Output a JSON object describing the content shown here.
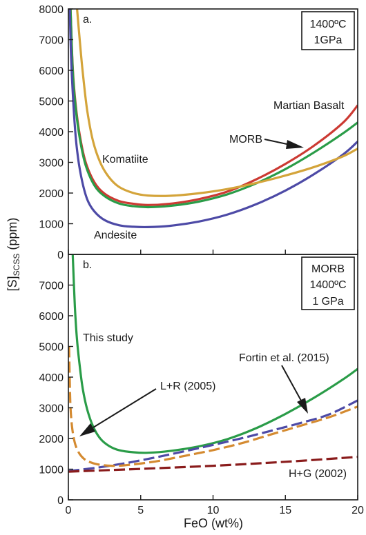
{
  "chart_data": [
    {
      "type": "line",
      "panel_label": "a.",
      "conditions": [
        "1400ºC",
        "1GPa"
      ],
      "xlabel": "",
      "ylabel": "[S]SCSS (ppm)",
      "xlim": [
        0,
        20
      ],
      "ylim": [
        0,
        8000
      ],
      "yticks": [
        "8000",
        "7000",
        "6000",
        "5000",
        "4000",
        "3000",
        "2000",
        "1000",
        "0"
      ],
      "series": [
        {
          "name": "Martian Basalt",
          "color": "#cc3a33",
          "dash": "solid",
          "points": [
            [
              0.15,
              8000
            ],
            [
              0.3,
              6100
            ],
            [
              0.5,
              4900
            ],
            [
              0.8,
              3850
            ],
            [
              1.2,
              3000
            ],
            [
              1.8,
              2350
            ],
            [
              2.5,
              1980
            ],
            [
              3.5,
              1740
            ],
            [
              4.5,
              1650
            ],
            [
              5.5,
              1610
            ],
            [
              7,
              1650
            ],
            [
              9,
              1800
            ],
            [
              11,
              2050
            ],
            [
              13,
              2450
            ],
            [
              15,
              2950
            ],
            [
              17,
              3550
            ],
            [
              19,
              4300
            ],
            [
              20,
              4860
            ]
          ]
        },
        {
          "name": "MORB",
          "color": "#2a9c48",
          "dash": "solid",
          "points": [
            [
              0.15,
              8000
            ],
            [
              0.3,
              6000
            ],
            [
              0.5,
              4800
            ],
            [
              0.8,
              3750
            ],
            [
              1.2,
              2900
            ],
            [
              1.8,
              2250
            ],
            [
              2.5,
              1900
            ],
            [
              3.5,
              1660
            ],
            [
              4.5,
              1570
            ],
            [
              5.5,
              1540
            ],
            [
              7,
              1580
            ],
            [
              9,
              1720
            ],
            [
              11,
              1960
            ],
            [
              13,
              2320
            ],
            [
              15,
              2780
            ],
            [
              17,
              3330
            ],
            [
              19,
              3950
            ],
            [
              20,
              4300
            ]
          ]
        },
        {
          "name": "Andesite",
          "color": "#4d4aa6",
          "dash": "solid",
          "points": [
            [
              0.1,
              8000
            ],
            [
              0.2,
              6300
            ],
            [
              0.4,
              4500
            ],
            [
              0.6,
              3400
            ],
            [
              0.9,
              2500
            ],
            [
              1.3,
              1800
            ],
            [
              1.8,
              1400
            ],
            [
              2.5,
              1120
            ],
            [
              3.5,
              950
            ],
            [
              4.5,
              900
            ],
            [
              5.5,
              890
            ],
            [
              7,
              930
            ],
            [
              9,
              1070
            ],
            [
              11,
              1300
            ],
            [
              13,
              1640
            ],
            [
              15,
              2080
            ],
            [
              17,
              2620
            ],
            [
              19,
              3260
            ],
            [
              20,
              3680
            ]
          ]
        },
        {
          "name": "Komatiite",
          "color": "#d4a43a",
          "dash": "solid",
          "points": [
            [
              0.6,
              8000
            ],
            [
              0.8,
              6900
            ],
            [
              1.0,
              5900
            ],
            [
              1.3,
              4700
            ],
            [
              1.7,
              3700
            ],
            [
              2.2,
              3000
            ],
            [
              2.8,
              2520
            ],
            [
              3.5,
              2200
            ],
            [
              4.5,
              2000
            ],
            [
              5.5,
              1920
            ],
            [
              7,
              1910
            ],
            [
              9,
              1990
            ],
            [
              11,
              2130
            ],
            [
              13,
              2330
            ],
            [
              15,
              2570
            ],
            [
              17,
              2850
            ],
            [
              19,
              3200
            ],
            [
              20,
              3450
            ]
          ]
        }
      ],
      "labels": [
        "Martian Basalt",
        "MORB",
        "Komatiite",
        "Andesite"
      ]
    },
    {
      "type": "line",
      "panel_label": "b.",
      "conditions": [
        "MORB",
        "1400ºC",
        "1 GPa"
      ],
      "xlabel": "FeO (wt%)",
      "ylabel": "",
      "xlim": [
        0,
        20
      ],
      "ylim": [
        0,
        8000
      ],
      "xticks": [
        "0",
        "5",
        "10",
        "15",
        "20"
      ],
      "yticks": [
        "7000",
        "6000",
        "5000",
        "4000",
        "3000",
        "2000",
        "1000",
        "0"
      ],
      "series": [
        {
          "name": "This study",
          "color": "#2a9c48",
          "dash": "solid",
          "points": [
            [
              0.3,
              8000
            ],
            [
              0.45,
              6300
            ],
            [
              0.6,
              5200
            ],
            [
              0.8,
              4300
            ],
            [
              1.0,
              3600
            ],
            [
              1.3,
              2950
            ],
            [
              1.7,
              2400
            ],
            [
              2.2,
              2000
            ],
            [
              2.8,
              1760
            ],
            [
              3.5,
              1620
            ],
            [
              4.5,
              1550
            ],
            [
              5.5,
              1535
            ],
            [
              7,
              1590
            ],
            [
              9,
              1740
            ],
            [
              11,
              1980
            ],
            [
              13,
              2340
            ],
            [
              15,
              2800
            ],
            [
              17,
              3330
            ],
            [
              19,
              3930
            ],
            [
              20,
              4270
            ]
          ]
        },
        {
          "name": "Fortin et al. (2015)",
          "color": "#4d4aa6",
          "dash": "dashed",
          "points": [
            [
              0,
              940
            ],
            [
              2,
              1050
            ],
            [
              4,
              1200
            ],
            [
              6,
              1380
            ],
            [
              8,
              1580
            ],
            [
              10,
              1790
            ],
            [
              12,
              2010
            ],
            [
              14,
              2250
            ],
            [
              16,
              2500
            ],
            [
              18,
              2780
            ],
            [
              20,
              3240
            ]
          ]
        },
        {
          "name": "L+R (2005)",
          "color": "#d48a30",
          "dash": "dashed",
          "points": [
            [
              0.05,
              5000
            ],
            [
              0.1,
              3800
            ],
            [
              0.15,
              3000
            ],
            [
              0.25,
              2400
            ],
            [
              0.4,
              1950
            ],
            [
              0.6,
              1650
            ],
            [
              0.9,
              1420
            ],
            [
              1.3,
              1270
            ],
            [
              2,
              1160
            ],
            [
              3,
              1110
            ],
            [
              4,
              1130
            ],
            [
              6,
              1250
            ],
            [
              8,
              1430
            ],
            [
              10,
              1620
            ],
            [
              12,
              1850
            ],
            [
              14,
              2130
            ],
            [
              16,
              2410
            ],
            [
              18,
              2690
            ],
            [
              20,
              3040
            ]
          ]
        },
        {
          "name": "H+G (2002)",
          "color": "#8a1c1c",
          "dash": "dashed",
          "points": [
            [
              0,
              920
            ],
            [
              5,
              1010
            ],
            [
              10,
              1110
            ],
            [
              15,
              1240
            ],
            [
              20,
              1400
            ]
          ]
        }
      ],
      "labels": [
        "This study",
        "Fortin et al. (2015)",
        "L+R (2005)",
        "H+G (2002)"
      ]
    }
  ]
}
